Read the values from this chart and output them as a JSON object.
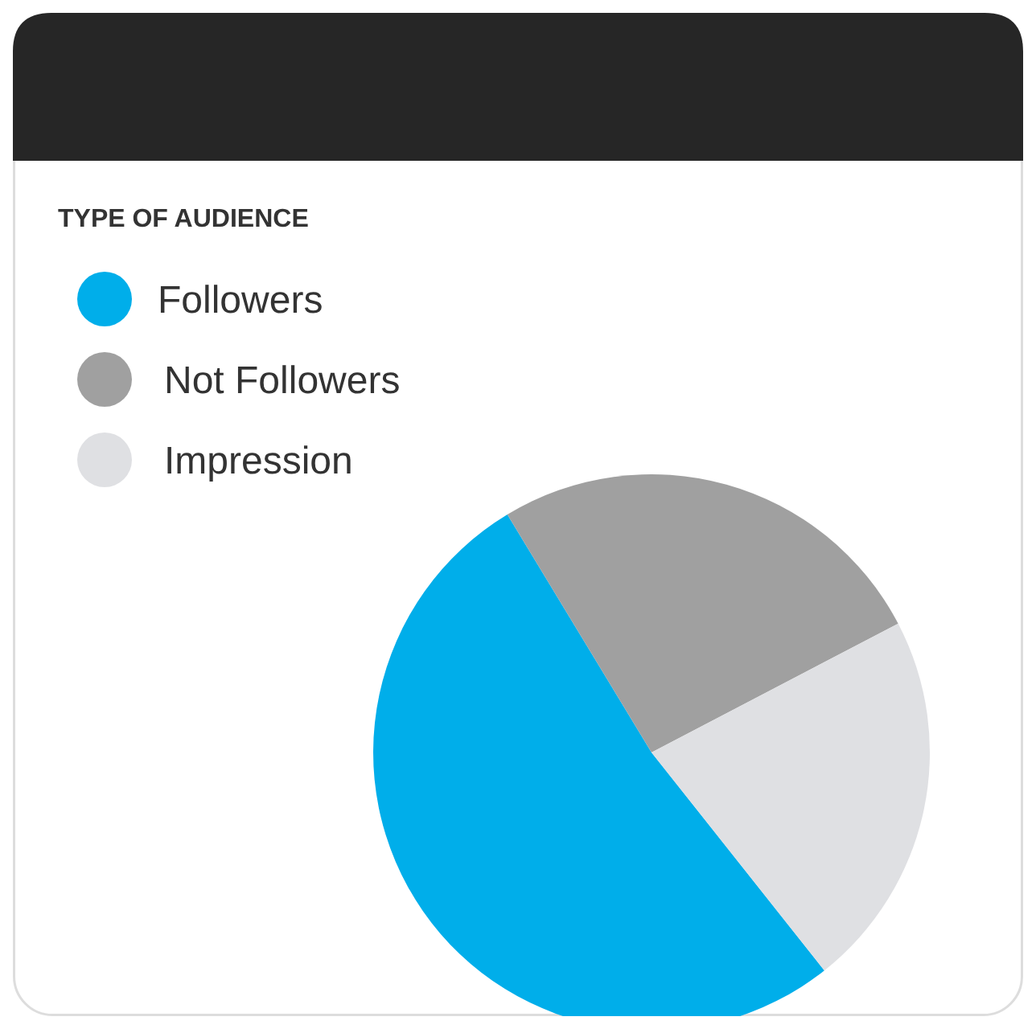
{
  "chart_data": {
    "type": "pie",
    "title": "TYPE OF AUDIENCE",
    "categories": [
      "Followers",
      "Not Followers",
      "Impression"
    ],
    "values": [
      52,
      26,
      22
    ],
    "colors": [
      "#00aeea",
      "#a0a0a0",
      "#dfe0e3"
    ],
    "legend": "top left"
  }
}
